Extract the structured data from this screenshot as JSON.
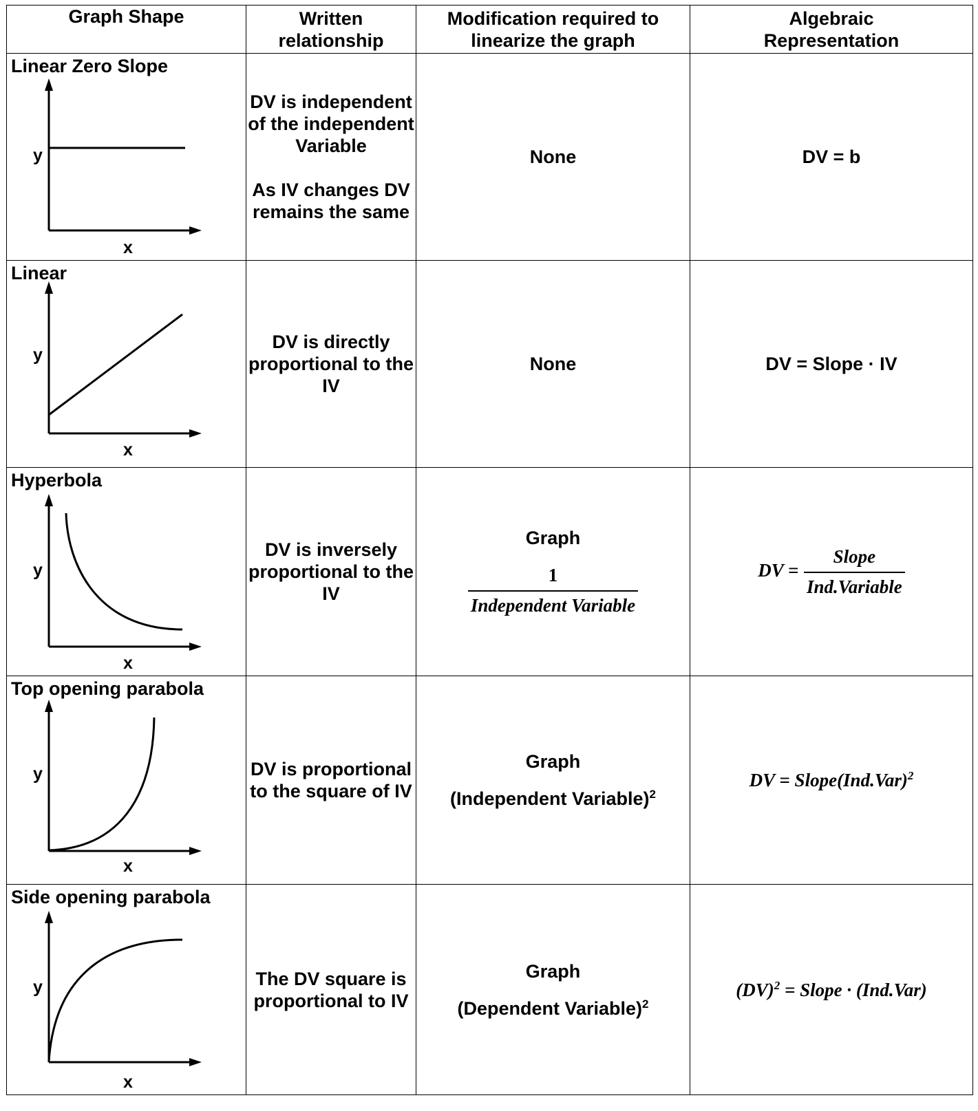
{
  "headers": {
    "graph_shape": "Graph Shape",
    "written_line1": "Written",
    "written_line2": "relationship",
    "modification_line1": "Modification required to",
    "modification_line2": "linearize the graph",
    "algebraic_line1": "Algebraic",
    "algebraic_line2": "Representation"
  },
  "axis_labels": {
    "y": "y",
    "x": "x"
  },
  "rows": [
    {
      "shape": "Linear Zero Slope",
      "relationship_a": "DV is independent of the independent Variable",
      "relationship_b": "As IV changes DV remains the same",
      "modification": "None",
      "algebraic": "DV = b"
    },
    {
      "shape": "Linear",
      "relationship": "DV is directly proportional to the IV",
      "modification": "None",
      "algebraic": "DV = Slope · IV"
    },
    {
      "shape": "Hyperbola",
      "relationship": "DV is inversely proportional to the IV",
      "modification_label": "Graph",
      "modification_num": "1",
      "modification_den": "Independent Variable",
      "algebraic_lhs": "DV =",
      "algebraic_num": "Slope",
      "algebraic_den": "Ind.Variable"
    },
    {
      "shape": "Top opening parabola",
      "relationship": "DV is proportional to the square of IV",
      "modification_label": "Graph",
      "modification_expr": "(Independent Variable)",
      "modification_exp": "2",
      "algebraic_expr": "DV = Slope(Ind.Var)",
      "algebraic_exp": "2"
    },
    {
      "shape": "Side opening parabola",
      "relationship": "The DV square is proportional to IV",
      "modification_label": "Graph",
      "modification_expr": "(Dependent Variable)",
      "modification_exp": "2",
      "algebraic_lhs": "(DV)",
      "algebraic_exp": "2",
      "algebraic_rhs": " = Slope · (Ind.Var)"
    }
  ]
}
